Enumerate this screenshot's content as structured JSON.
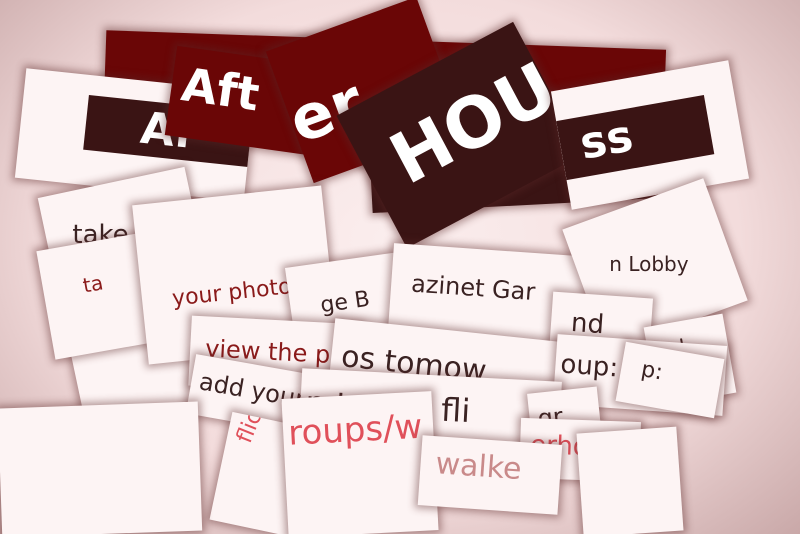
{
  "fragments": [
    "Aft",
    "er",
    "Af",
    "HOU",
    "ss",
    "take you",
    "ta",
    "your photo i",
    "ge B",
    "azinet Gar",
    "n Lobby",
    "nd",
    "view the p",
    "os tomow",
    "oup:",
    "add your own",
    "n to our fli",
    "roups/w",
    "erhours",
    "walke",
    "flickr.co",
    "gr",
    "p:",
    "nd"
  ]
}
